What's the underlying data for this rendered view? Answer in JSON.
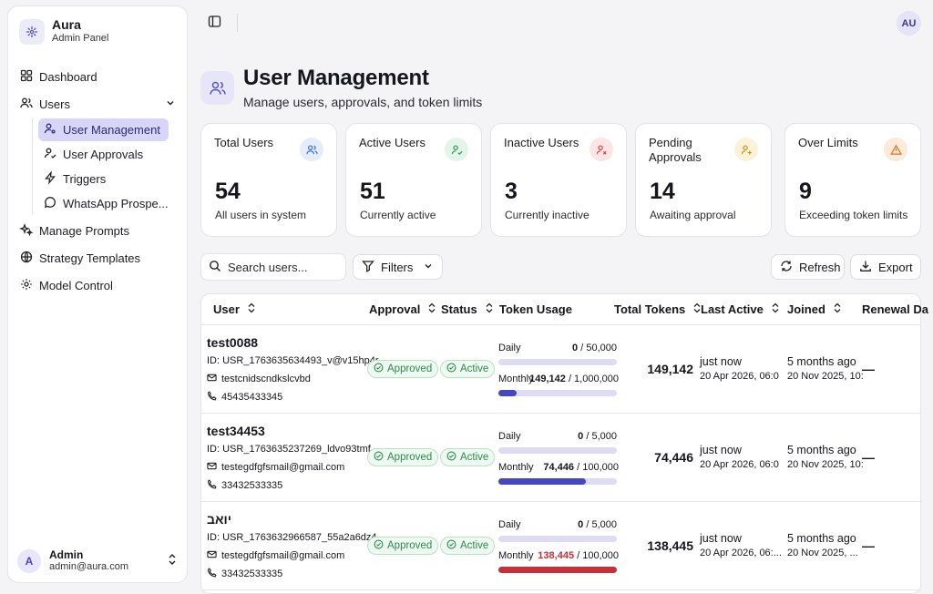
{
  "brand": {
    "name": "Aura",
    "subtitle": "Admin Panel"
  },
  "sidebar": {
    "items": [
      {
        "label": "Dashboard"
      },
      {
        "label": "Users"
      },
      {
        "label": "Manage Prompts"
      },
      {
        "label": "Strategy Templates"
      },
      {
        "label": "Model Control"
      }
    ],
    "users_sub": [
      {
        "label": "User Management",
        "active": true
      },
      {
        "label": "User Approvals"
      },
      {
        "label": "Triggers"
      },
      {
        "label": "WhatsApp Prospe..."
      }
    ],
    "user": {
      "initial": "A",
      "name": "Admin",
      "email": "admin@aura.com"
    }
  },
  "topbar": {
    "avatar": "AU"
  },
  "header": {
    "title": "User Management",
    "subtitle": "Manage users, approvals, and token limits"
  },
  "stats": [
    {
      "label": "Total Users",
      "value": "54",
      "desc": "All users in system",
      "color": "#3b6fd6",
      "bg": "#e5edfb",
      "icon": "users-icon"
    },
    {
      "label": "Active Users",
      "value": "51",
      "desc": "Currently active",
      "color": "#2f9a55",
      "bg": "#e3f5e9",
      "icon": "user-check-icon"
    },
    {
      "label": "Inactive Users",
      "value": "3",
      "desc": "Currently inactive",
      "color": "#d64545",
      "bg": "#fbe6e6",
      "icon": "user-x-icon"
    },
    {
      "label": "Pending Approvals",
      "value": "14",
      "desc": "Awaiting approval",
      "color": "#c99512",
      "bg": "#fbf3d9",
      "icon": "user-plus-icon"
    },
    {
      "label": "Over Limits",
      "value": "9",
      "desc": "Exceeding token limits",
      "color": "#d9761c",
      "bg": "#fdeadb",
      "icon": "warning-icon"
    }
  ],
  "toolbar": {
    "search_placeholder": "Search users...",
    "filters": "Filters",
    "refresh": "Refresh",
    "export": "Export"
  },
  "table": {
    "columns": [
      "User",
      "Approval",
      "Status",
      "Token Usage",
      "Total Tokens",
      "Last Active",
      "Joined",
      "Renewal Da"
    ],
    "daily_label": "Daily",
    "monthly_label": "Monthly",
    "rows": [
      {
        "name": "test0088",
        "id": "ID: USR_1763635634493_v@v15hp4r",
        "email": "testcnidscndkslcvbd",
        "phone": "45435433345",
        "approval": "Approved",
        "status": "Active",
        "daily_used": "0",
        "daily_limit": " / 50,000",
        "daily_pct": 0,
        "monthly_used": "149,142",
        "monthly_limit": " / 1,000,000",
        "monthly_pct": 15,
        "monthly_color": "#4845c4",
        "monthly_over": false,
        "total": "149,142",
        "last_active": "just now",
        "last_active_date": "20 Apr 2026, 06:0",
        "joined": "5 months ago",
        "joined_date": "20 Nov 2025, 10:",
        "renewal": "—"
      },
      {
        "name": "test34453",
        "id": "ID: USR_1763635237269_ldvo93tmf",
        "email": "testegdfgfsmail@gmail.com",
        "phone": "33432533335",
        "approval": "Approved",
        "status": "Active",
        "daily_used": "0",
        "daily_limit": " / 5,000",
        "daily_pct": 0,
        "monthly_used": "74,446",
        "monthly_limit": " / 100,000",
        "monthly_pct": 74,
        "monthly_color": "#4845c4",
        "monthly_over": false,
        "total": "74,446",
        "last_active": "just now",
        "last_active_date": "20 Apr 2026, 06:0",
        "joined": "5 months ago",
        "joined_date": "20 Nov 2025, 10:",
        "renewal": "—"
      },
      {
        "name": "יואב",
        "id": "ID: USR_1763632966587_55a2a6dz4",
        "email": "testegdfgfsmail@gmail.com",
        "phone": "33432533335",
        "approval": "Approved",
        "status": "Active",
        "daily_used": "0",
        "daily_limit": " / 5,000",
        "daily_pct": 0,
        "monthly_used": "138,445",
        "monthly_limit": " / 100,000",
        "monthly_pct": 100,
        "monthly_color": "#c7303a",
        "monthly_over": true,
        "total": "138,445",
        "last_active": "just now",
        "last_active_date": "20 Apr 2026, 06:...",
        "joined": "5 months ago",
        "joined_date": "20 Nov 2025, ...",
        "renewal": "—"
      }
    ]
  }
}
